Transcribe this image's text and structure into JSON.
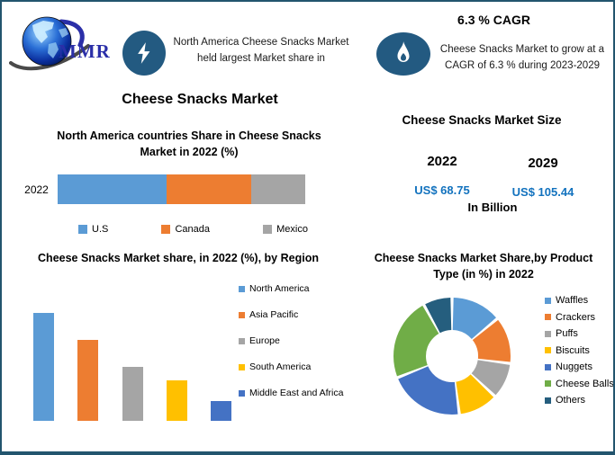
{
  "page_title": "Cheese Snacks Market",
  "header": {
    "brand": "MMR",
    "na_highlight": "North America Cheese Snacks Market held largest Market share in",
    "cagr_heading": "6.3 % CAGR",
    "cagr_note": "Cheese Snacks Market to grow at a CAGR of 6.3 % during 2023-2029"
  },
  "icons": {
    "logo": "globe-swoosh-logo",
    "na_badge": "lightning-icon",
    "cagr_badge": "flame-icon"
  },
  "colors": {
    "badge_background": "#235A81",
    "border": "#23556E",
    "value_text": "#1272BE",
    "brand_text": "#2B2FA8"
  },
  "market_size": {
    "title": "Cheese Snacks Market Size",
    "columns": [
      {
        "year": "2022",
        "value": "US$ 68.75"
      },
      {
        "year": "2029",
        "value": "US$ 105.44"
      }
    ],
    "unit": "In Billion"
  },
  "chart_data": [
    {
      "id": "north_america_country_share",
      "type": "bar",
      "variant": "horizontal-stacked",
      "title": "North America countries Share in Cheese Snacks Market in 2022 (%)",
      "categories": [
        "2022"
      ],
      "series": [
        {
          "name": "U.S",
          "color": "#5B9BD5",
          "values": [
            44
          ]
        },
        {
          "name": "Canada",
          "color": "#ED7D31",
          "values": [
            34
          ]
        },
        {
          "name": "Mexico",
          "color": "#A5A5A5",
          "values": [
            22
          ]
        }
      ],
      "legend_position": "bottom",
      "grid": false,
      "note": "values estimated from segment widths"
    },
    {
      "id": "region_share",
      "type": "bar",
      "title": "Cheese Snacks Market share, in 2022 (%), by Region",
      "categories": [
        "North America",
        "Asia Pacific",
        "Europe",
        "South America",
        "Middle East and Africa"
      ],
      "values": [
        40,
        30,
        20,
        15,
        7.5
      ],
      "colors": [
        "#5B9BD5",
        "#ED7D31",
        "#A5A5A5",
        "#FFC000",
        "#4472C4"
      ],
      "ylim": [
        0,
        45
      ],
      "legend_position": "right",
      "grid": false,
      "axis_tick_labels_shown": false,
      "note": "values estimated from bar heights; no axis labels visible"
    },
    {
      "id": "product_type_share",
      "type": "pie",
      "variant": "donut",
      "title": "Cheese Snacks Market Share,by Product Type (in %) in 2022",
      "categories": [
        "Waffles",
        "Crackers",
        "Puffs",
        "Biscuits",
        "Nuggets",
        "Cheese Balls",
        "Others"
      ],
      "values": [
        14,
        13,
        10,
        11,
        21,
        23,
        8
      ],
      "colors": [
        "#5B9BD5",
        "#ED7D31",
        "#A5A5A5",
        "#FFC000",
        "#4472C4",
        "#70AD47",
        "#255E7E"
      ],
      "legend_position": "right",
      "start_angle_deg": -90,
      "note": "values estimated from slice angles; no data labels visible"
    }
  ]
}
